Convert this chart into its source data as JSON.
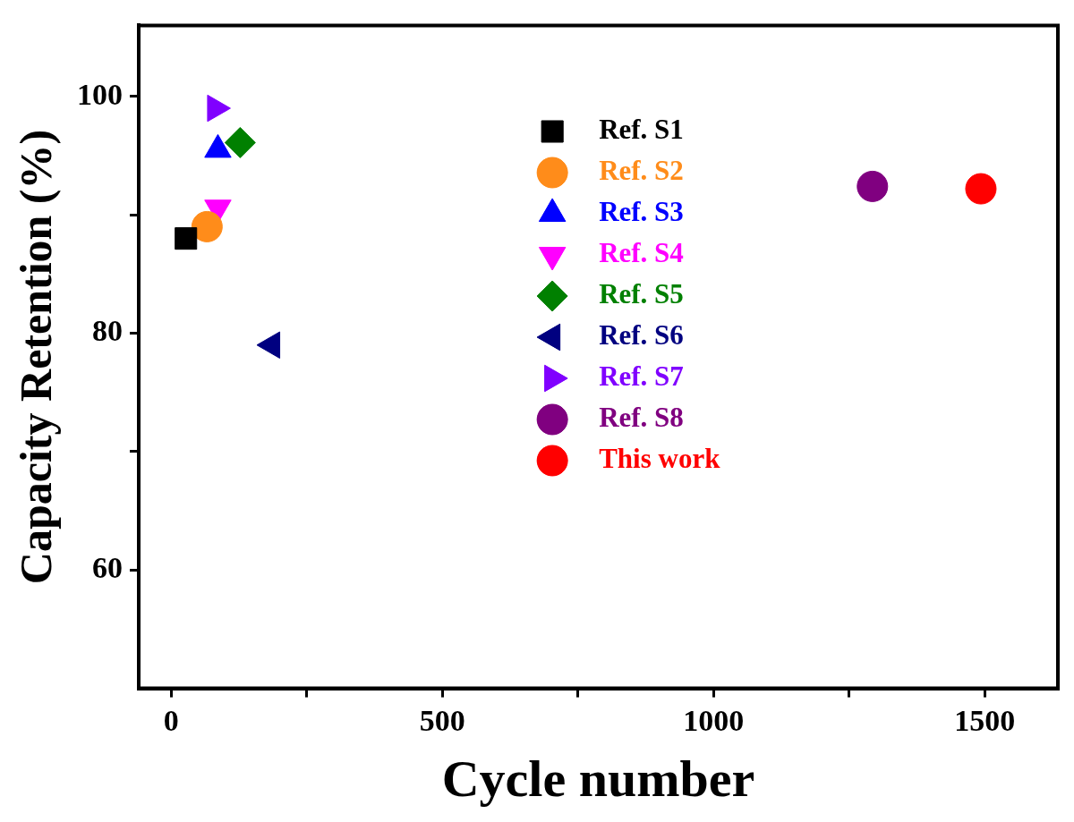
{
  "chart_data": {
    "type": "scatter",
    "xlabel": "Cycle number",
    "ylabel": "Capacity Retention (%)",
    "xlim": [
      -60,
      1635
    ],
    "xticks": [
      0,
      {
        "value": 250,
        "label": null
      },
      500,
      {
        "value": 750,
        "label": null
      },
      1000,
      {
        "value": 1250,
        "label": null
      },
      1500
    ],
    "ylim": [
      50,
      106
    ],
    "yticks": [
      60,
      {
        "value": 70,
        "label": null
      },
      80,
      {
        "value": 90,
        "label": null
      },
      100
    ],
    "grid": false,
    "legend": "top right",
    "series": [
      {
        "name": "Ref. S1",
        "color": "#000000",
        "marker": "square",
        "x": [
          27
        ],
        "values": [
          88
        ]
      },
      {
        "name": "Ref. S2",
        "color": "#ff8c1a",
        "marker": "circle",
        "x": [
          66
        ],
        "values": [
          89
        ]
      },
      {
        "name": "Ref. S3",
        "color": "#0000ff",
        "marker": "triangle",
        "x": [
          86
        ],
        "values": [
          95.5
        ]
      },
      {
        "name": "Ref. S4",
        "color": "#ff00ff",
        "marker": "triangle-down",
        "x": [
          86
        ],
        "values": [
          90.6
        ]
      },
      {
        "name": "Ref. S5",
        "color": "#008000",
        "marker": "diamond",
        "x": [
          127
        ],
        "values": [
          96.1
        ]
      },
      {
        "name": "Ref. S6",
        "color": "#000080",
        "marker": "triangle-left",
        "x": [
          186
        ],
        "values": [
          79
        ]
      },
      {
        "name": "Ref. S7",
        "color": "#8000ff",
        "marker": "triangle-right",
        "x": [
          81
        ],
        "values": [
          99
        ]
      },
      {
        "name": "Ref. S8",
        "color": "#800080",
        "x": [
          1293
        ],
        "values": [
          92.4
        ]
      },
      {
        "name": "This work",
        "color": "#ff0000",
        "marker": "circle",
        "x": [
          1493
        ],
        "values": [
          92.2
        ]
      }
    ]
  }
}
